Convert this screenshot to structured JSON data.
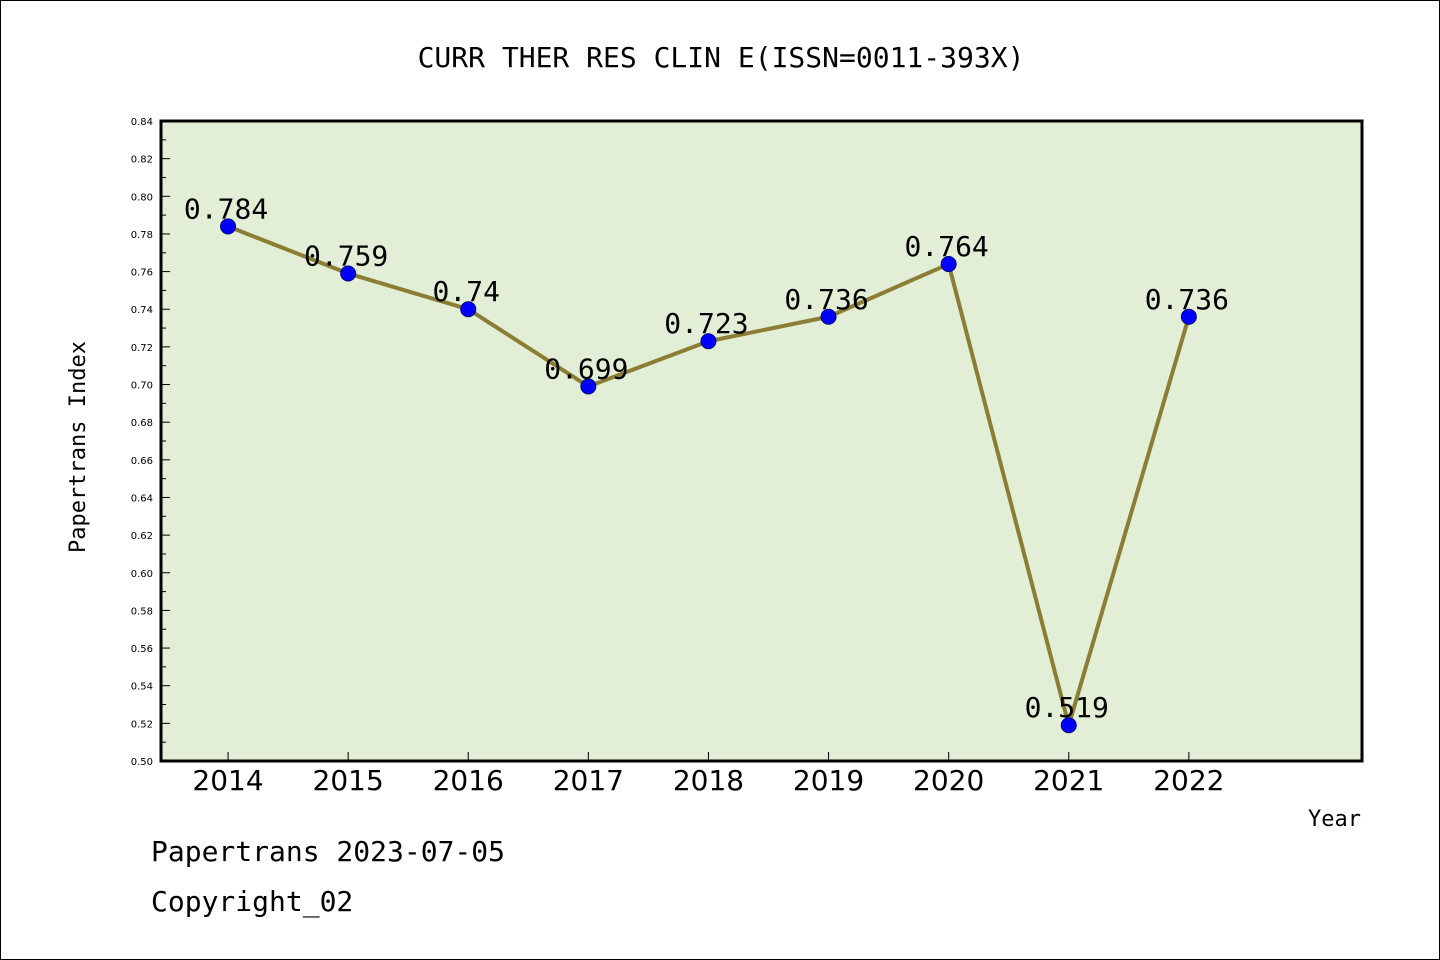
{
  "chart_data": {
    "type": "line",
    "title": "CURR THER RES CLIN E(ISSN=0011-393X)",
    "xlabel": "Year",
    "ylabel": "Papertrans Index",
    "categories": [
      "2014",
      "2015",
      "2016",
      "2017",
      "2018",
      "2019",
      "2020",
      "2021",
      "2022"
    ],
    "series": [
      {
        "values": [
          0.784,
          0.759,
          0.74,
          0.699,
          0.723,
          0.736,
          0.764,
          0.519,
          0.736
        ]
      }
    ],
    "data_labels": [
      "0.784",
      "0.759",
      "0.74",
      "0.699",
      "0.723",
      "0.736",
      "0.764",
      "0.519",
      "0.736"
    ],
    "ylim": [
      0.5,
      0.84
    ],
    "yticks": [
      "0.50",
      "0.52",
      "0.54",
      "0.56",
      "0.58",
      "0.60",
      "0.62",
      "0.64",
      "0.66",
      "0.68",
      "0.70",
      "0.72",
      "0.74",
      "0.76",
      "0.78",
      "0.80",
      "0.82",
      "0.84"
    ],
    "grid": false,
    "legend": "none",
    "colors": {
      "plot_background": "#e2efd6",
      "line": "#8b7d34",
      "marker": "#0000ff",
      "frame": "#000000"
    }
  },
  "footer": {
    "date_line": "Papertrans 2023-07-05",
    "copyright_line": "Copyright_02"
  }
}
